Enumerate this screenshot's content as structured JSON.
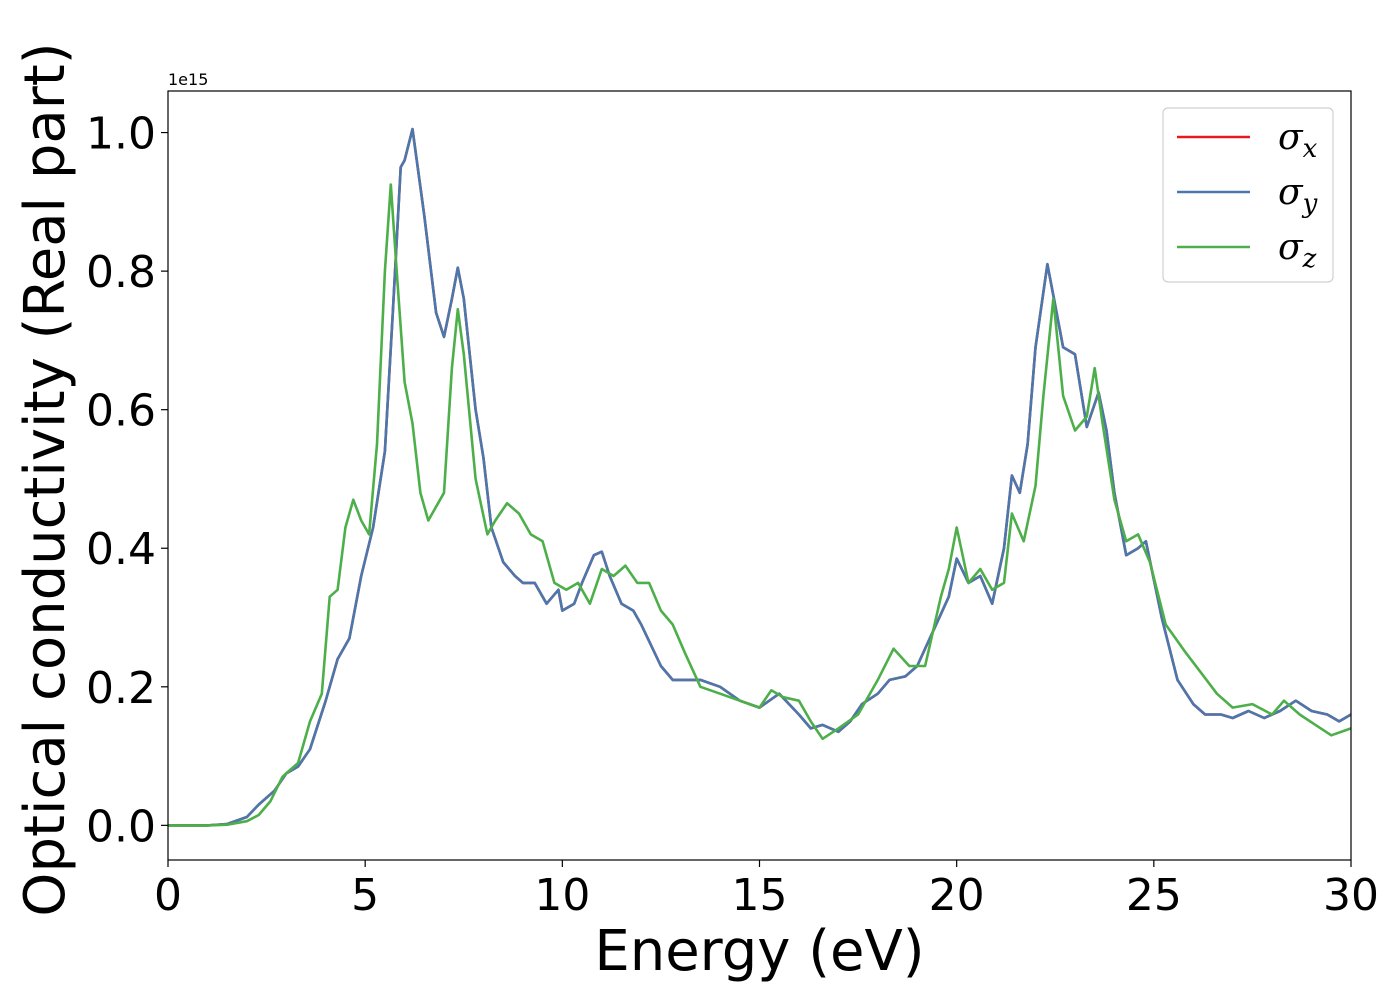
{
  "chart_data": {
    "type": "line",
    "xlabel": "Energy (eV)",
    "ylabel": "Optical conductivity (Real part)",
    "offset_text": "1e15",
    "xlim": [
      0,
      30
    ],
    "ylim": [
      -0.05,
      1.06
    ],
    "x_ticks": [
      "0",
      "5",
      "10",
      "15",
      "20",
      "25",
      "30"
    ],
    "y_ticks": [
      "0.0",
      "0.2",
      "0.4",
      "0.6",
      "0.8",
      "1.0"
    ],
    "grid": false,
    "legend_position": "top-right",
    "series": [
      {
        "name": "σx",
        "symbol": "σ",
        "subscript": "x",
        "color": "#e41a1c",
        "points": [
          [
            0,
            0
          ],
          [
            1,
            0
          ],
          [
            1.5,
            0.002
          ],
          [
            2,
            0.012
          ],
          [
            2.3,
            0.03
          ],
          [
            2.7,
            0.05
          ],
          [
            3,
            0.075
          ],
          [
            3.3,
            0.085
          ],
          [
            3.6,
            0.11
          ],
          [
            4,
            0.18
          ],
          [
            4.3,
            0.24
          ],
          [
            4.6,
            0.27
          ],
          [
            4.9,
            0.36
          ],
          [
            5.2,
            0.43
          ],
          [
            5.5,
            0.54
          ],
          [
            5.7,
            0.74
          ],
          [
            5.9,
            0.95
          ],
          [
            6,
            0.96
          ],
          [
            6.2,
            1.005
          ],
          [
            6.5,
            0.88
          ],
          [
            6.8,
            0.74
          ],
          [
            7,
            0.705
          ],
          [
            7.2,
            0.76
          ],
          [
            7.35,
            0.805
          ],
          [
            7.5,
            0.76
          ],
          [
            7.8,
            0.6
          ],
          [
            8,
            0.53
          ],
          [
            8.2,
            0.43
          ],
          [
            8.5,
            0.38
          ],
          [
            8.8,
            0.36
          ],
          [
            9,
            0.35
          ],
          [
            9.3,
            0.35
          ],
          [
            9.6,
            0.32
          ],
          [
            9.9,
            0.34
          ],
          [
            10,
            0.31
          ],
          [
            10.3,
            0.32
          ],
          [
            10.5,
            0.35
          ],
          [
            10.8,
            0.39
          ],
          [
            11,
            0.395
          ],
          [
            11.2,
            0.36
          ],
          [
            11.5,
            0.32
          ],
          [
            11.8,
            0.31
          ],
          [
            12,
            0.29
          ],
          [
            12.5,
            0.23
          ],
          [
            12.8,
            0.21
          ],
          [
            13,
            0.21
          ],
          [
            13.5,
            0.21
          ],
          [
            14,
            0.2
          ],
          [
            14.5,
            0.18
          ],
          [
            15,
            0.17
          ],
          [
            15.5,
            0.19
          ],
          [
            16,
            0.16
          ],
          [
            16.3,
            0.14
          ],
          [
            16.6,
            0.145
          ],
          [
            17,
            0.135
          ],
          [
            17.3,
            0.15
          ],
          [
            17.6,
            0.175
          ],
          [
            18,
            0.19
          ],
          [
            18.3,
            0.21
          ],
          [
            18.7,
            0.215
          ],
          [
            19,
            0.23
          ],
          [
            19.4,
            0.28
          ],
          [
            19.8,
            0.33
          ],
          [
            20,
            0.385
          ],
          [
            20.3,
            0.35
          ],
          [
            20.6,
            0.36
          ],
          [
            20.9,
            0.32
          ],
          [
            21.2,
            0.4
          ],
          [
            21.4,
            0.505
          ],
          [
            21.6,
            0.48
          ],
          [
            21.8,
            0.55
          ],
          [
            22,
            0.69
          ],
          [
            22.3,
            0.81
          ],
          [
            22.5,
            0.75
          ],
          [
            22.7,
            0.69
          ],
          [
            23,
            0.68
          ],
          [
            23.3,
            0.575
          ],
          [
            23.6,
            0.625
          ],
          [
            23.8,
            0.57
          ],
          [
            24,
            0.48
          ],
          [
            24.3,
            0.39
          ],
          [
            24.6,
            0.4
          ],
          [
            24.8,
            0.41
          ],
          [
            25.2,
            0.3
          ],
          [
            25.6,
            0.21
          ],
          [
            26,
            0.175
          ],
          [
            26.3,
            0.16
          ],
          [
            26.7,
            0.16
          ],
          [
            27,
            0.155
          ],
          [
            27.4,
            0.165
          ],
          [
            27.8,
            0.155
          ],
          [
            28.2,
            0.165
          ],
          [
            28.6,
            0.18
          ],
          [
            29,
            0.165
          ],
          [
            29.4,
            0.16
          ],
          [
            29.7,
            0.15
          ],
          [
            30,
            0.16
          ]
        ]
      },
      {
        "name": "σy",
        "symbol": "σ",
        "subscript": "y",
        "color": "#4a78ad",
        "points": [
          [
            0,
            0
          ],
          [
            1,
            0
          ],
          [
            1.5,
            0.002
          ],
          [
            2,
            0.012
          ],
          [
            2.3,
            0.03
          ],
          [
            2.7,
            0.05
          ],
          [
            3,
            0.075
          ],
          [
            3.3,
            0.085
          ],
          [
            3.6,
            0.11
          ],
          [
            4,
            0.18
          ],
          [
            4.3,
            0.24
          ],
          [
            4.6,
            0.27
          ],
          [
            4.9,
            0.36
          ],
          [
            5.2,
            0.43
          ],
          [
            5.5,
            0.54
          ],
          [
            5.7,
            0.74
          ],
          [
            5.9,
            0.95
          ],
          [
            6,
            0.96
          ],
          [
            6.2,
            1.005
          ],
          [
            6.5,
            0.88
          ],
          [
            6.8,
            0.74
          ],
          [
            7,
            0.705
          ],
          [
            7.2,
            0.76
          ],
          [
            7.35,
            0.805
          ],
          [
            7.5,
            0.76
          ],
          [
            7.8,
            0.6
          ],
          [
            8,
            0.53
          ],
          [
            8.2,
            0.43
          ],
          [
            8.5,
            0.38
          ],
          [
            8.8,
            0.36
          ],
          [
            9,
            0.35
          ],
          [
            9.3,
            0.35
          ],
          [
            9.6,
            0.32
          ],
          [
            9.9,
            0.34
          ],
          [
            10,
            0.31
          ],
          [
            10.3,
            0.32
          ],
          [
            10.5,
            0.35
          ],
          [
            10.8,
            0.39
          ],
          [
            11,
            0.395
          ],
          [
            11.2,
            0.36
          ],
          [
            11.5,
            0.32
          ],
          [
            11.8,
            0.31
          ],
          [
            12,
            0.29
          ],
          [
            12.5,
            0.23
          ],
          [
            12.8,
            0.21
          ],
          [
            13,
            0.21
          ],
          [
            13.5,
            0.21
          ],
          [
            14,
            0.2
          ],
          [
            14.5,
            0.18
          ],
          [
            15,
            0.17
          ],
          [
            15.5,
            0.19
          ],
          [
            16,
            0.16
          ],
          [
            16.3,
            0.14
          ],
          [
            16.6,
            0.145
          ],
          [
            17,
            0.135
          ],
          [
            17.3,
            0.15
          ],
          [
            17.6,
            0.175
          ],
          [
            18,
            0.19
          ],
          [
            18.3,
            0.21
          ],
          [
            18.7,
            0.215
          ],
          [
            19,
            0.23
          ],
          [
            19.4,
            0.28
          ],
          [
            19.8,
            0.33
          ],
          [
            20,
            0.385
          ],
          [
            20.3,
            0.35
          ],
          [
            20.6,
            0.36
          ],
          [
            20.9,
            0.32
          ],
          [
            21.2,
            0.4
          ],
          [
            21.4,
            0.505
          ],
          [
            21.6,
            0.48
          ],
          [
            21.8,
            0.55
          ],
          [
            22,
            0.69
          ],
          [
            22.3,
            0.81
          ],
          [
            22.5,
            0.75
          ],
          [
            22.7,
            0.69
          ],
          [
            23,
            0.68
          ],
          [
            23.3,
            0.575
          ],
          [
            23.6,
            0.625
          ],
          [
            23.8,
            0.57
          ],
          [
            24,
            0.48
          ],
          [
            24.3,
            0.39
          ],
          [
            24.6,
            0.4
          ],
          [
            24.8,
            0.41
          ],
          [
            25.2,
            0.3
          ],
          [
            25.6,
            0.21
          ],
          [
            26,
            0.175
          ],
          [
            26.3,
            0.16
          ],
          [
            26.7,
            0.16
          ],
          [
            27,
            0.155
          ],
          [
            27.4,
            0.165
          ],
          [
            27.8,
            0.155
          ],
          [
            28.2,
            0.165
          ],
          [
            28.6,
            0.18
          ],
          [
            29,
            0.165
          ],
          [
            29.4,
            0.16
          ],
          [
            29.7,
            0.15
          ],
          [
            30,
            0.16
          ]
        ]
      },
      {
        "name": "σz",
        "symbol": "σ",
        "subscript": "z",
        "color": "#4daf4a",
        "points": [
          [
            0,
            0
          ],
          [
            1,
            0
          ],
          [
            1.5,
            0.001
          ],
          [
            2,
            0.006
          ],
          [
            2.3,
            0.015
          ],
          [
            2.6,
            0.035
          ],
          [
            2.9,
            0.07
          ],
          [
            3.1,
            0.08
          ],
          [
            3.3,
            0.09
          ],
          [
            3.6,
            0.15
          ],
          [
            3.9,
            0.19
          ],
          [
            4.1,
            0.33
          ],
          [
            4.3,
            0.34
          ],
          [
            4.5,
            0.43
          ],
          [
            4.7,
            0.47
          ],
          [
            4.9,
            0.44
          ],
          [
            5.1,
            0.42
          ],
          [
            5.3,
            0.55
          ],
          [
            5.5,
            0.8
          ],
          [
            5.65,
            0.925
          ],
          [
            5.8,
            0.8
          ],
          [
            6,
            0.64
          ],
          [
            6.2,
            0.58
          ],
          [
            6.4,
            0.48
          ],
          [
            6.6,
            0.44
          ],
          [
            6.8,
            0.46
          ],
          [
            7,
            0.48
          ],
          [
            7.2,
            0.66
          ],
          [
            7.35,
            0.745
          ],
          [
            7.5,
            0.68
          ],
          [
            7.8,
            0.5
          ],
          [
            8.1,
            0.42
          ],
          [
            8.3,
            0.44
          ],
          [
            8.6,
            0.465
          ],
          [
            8.9,
            0.45
          ],
          [
            9.2,
            0.42
          ],
          [
            9.5,
            0.41
          ],
          [
            9.8,
            0.35
          ],
          [
            10.1,
            0.34
          ],
          [
            10.4,
            0.35
          ],
          [
            10.7,
            0.32
          ],
          [
            11,
            0.37
          ],
          [
            11.3,
            0.36
          ],
          [
            11.6,
            0.375
          ],
          [
            11.9,
            0.35
          ],
          [
            12.2,
            0.35
          ],
          [
            12.5,
            0.31
          ],
          [
            12.8,
            0.29
          ],
          [
            13.1,
            0.25
          ],
          [
            13.5,
            0.2
          ],
          [
            14,
            0.19
          ],
          [
            14.5,
            0.18
          ],
          [
            15,
            0.17
          ],
          [
            15.3,
            0.195
          ],
          [
            15.6,
            0.185
          ],
          [
            16,
            0.18
          ],
          [
            16.3,
            0.15
          ],
          [
            16.6,
            0.125
          ],
          [
            17,
            0.14
          ],
          [
            17.5,
            0.16
          ],
          [
            18,
            0.21
          ],
          [
            18.4,
            0.255
          ],
          [
            18.8,
            0.23
          ],
          [
            19.2,
            0.23
          ],
          [
            19.6,
            0.33
          ],
          [
            19.8,
            0.37
          ],
          [
            20,
            0.43
          ],
          [
            20.3,
            0.35
          ],
          [
            20.6,
            0.37
          ],
          [
            20.9,
            0.34
          ],
          [
            21.2,
            0.35
          ],
          [
            21.4,
            0.45
          ],
          [
            21.7,
            0.41
          ],
          [
            22,
            0.49
          ],
          [
            22.2,
            0.62
          ],
          [
            22.45,
            0.76
          ],
          [
            22.7,
            0.62
          ],
          [
            23,
            0.57
          ],
          [
            23.3,
            0.59
          ],
          [
            23.5,
            0.66
          ],
          [
            23.7,
            0.58
          ],
          [
            24,
            0.47
          ],
          [
            24.3,
            0.41
          ],
          [
            24.6,
            0.42
          ],
          [
            24.9,
            0.38
          ],
          [
            25.3,
            0.29
          ],
          [
            25.8,
            0.25
          ],
          [
            26.2,
            0.22
          ],
          [
            26.6,
            0.19
          ],
          [
            27,
            0.17
          ],
          [
            27.5,
            0.175
          ],
          [
            28,
            0.16
          ],
          [
            28.3,
            0.18
          ],
          [
            28.7,
            0.16
          ],
          [
            29.1,
            0.145
          ],
          [
            29.5,
            0.13
          ],
          [
            30,
            0.14
          ]
        ]
      }
    ]
  }
}
